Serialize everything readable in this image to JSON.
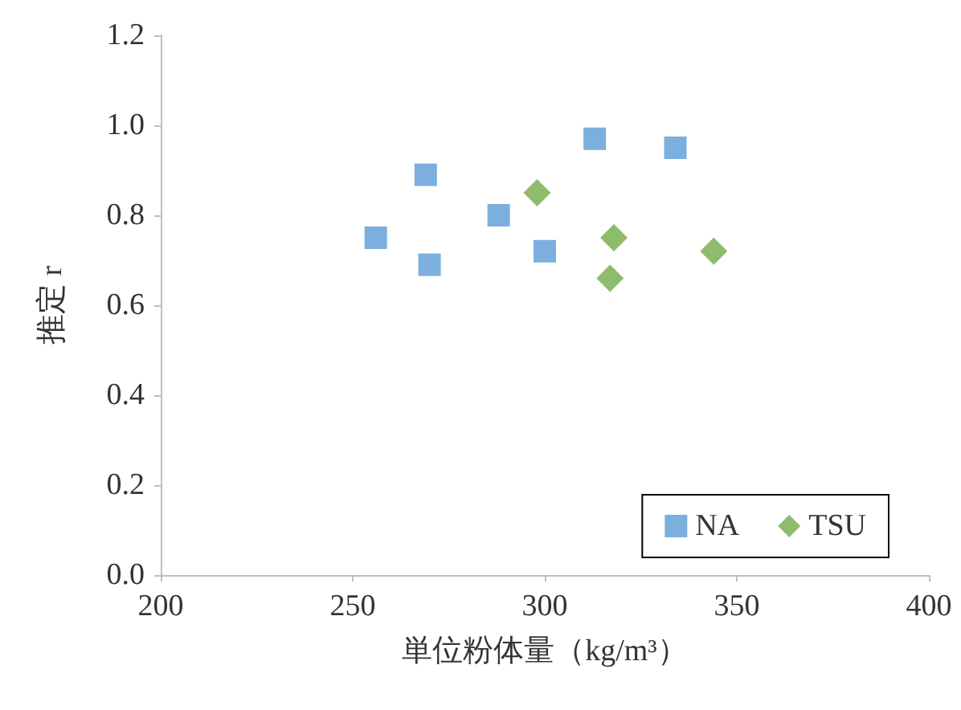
{
  "chart_data": {
    "type": "scatter",
    "xlabel": "単位粉体量（kg/m³）",
    "ylabel": "推定 r",
    "series": [
      {
        "name": "NA",
        "color": "#5b9bd5",
        "marker": "square",
        "x": [
          256,
          269,
          270,
          288,
          300,
          313,
          334
        ],
        "values": [
          0.75,
          0.89,
          0.69,
          0.8,
          0.72,
          0.97,
          0.95
        ]
      },
      {
        "name": "TSU",
        "color": "#70ad47",
        "marker": "diamond",
        "x": [
          298,
          318,
          317,
          344
        ],
        "values": [
          0.85,
          0.75,
          0.66,
          0.72
        ]
      }
    ],
    "xlim": [
      200,
      400
    ],
    "xticks": [
      200,
      250,
      300,
      350,
      400
    ],
    "ylim": [
      0,
      1.2
    ],
    "yticks": [
      {
        "value": 0,
        "label": "0.0"
      },
      {
        "value": 0.2,
        "label": "0.2"
      },
      {
        "value": 0.4,
        "label": "0.4"
      },
      {
        "value": 0.6,
        "label": "0.6"
      },
      {
        "value": 0.8,
        "label": "0.8"
      },
      {
        "value": 1.0,
        "label": "1.0"
      },
      {
        "value": 1.2,
        "label": "1.2"
      }
    ],
    "grid": false,
    "legend": "bottom right"
  }
}
